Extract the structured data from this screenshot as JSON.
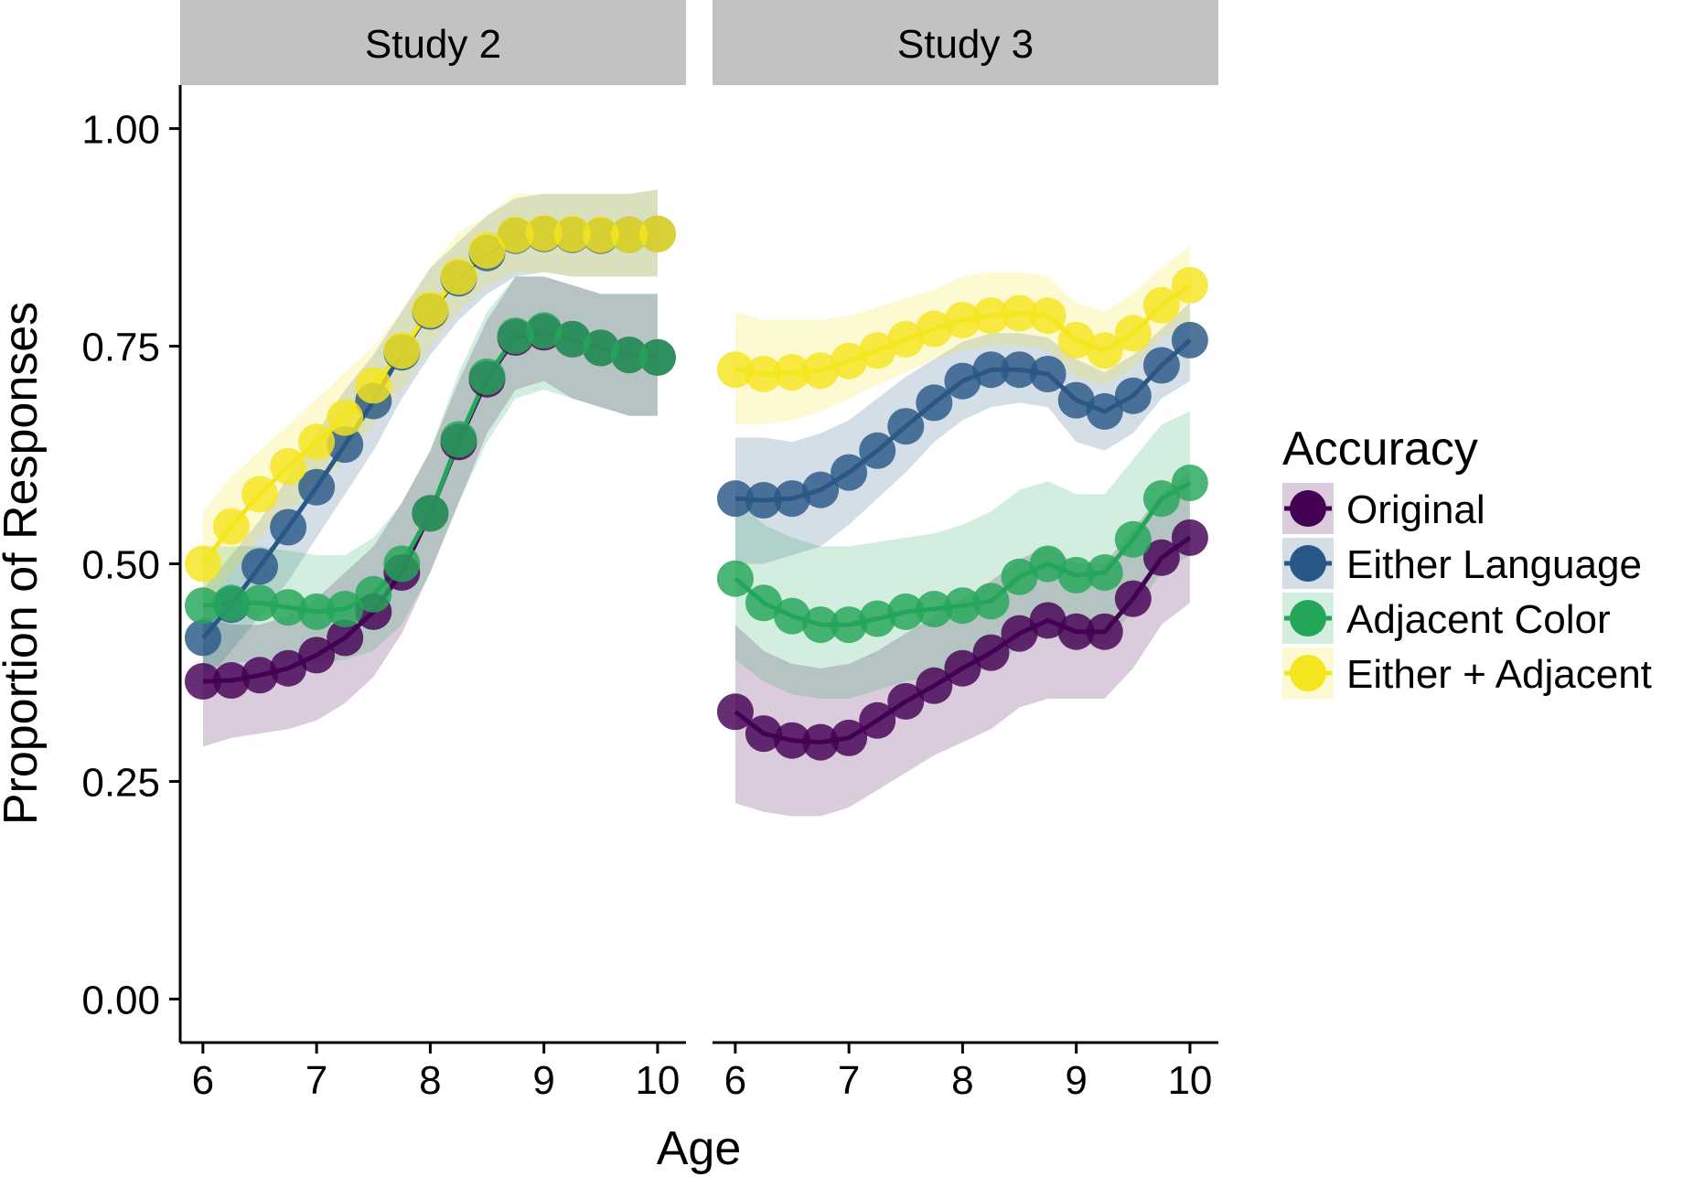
{
  "chart_data": {
    "type": "line",
    "xlabel": "Age",
    "ylabel": "Proportion of Responses",
    "xlim": [
      5.8,
      10.25
    ],
    "ylim": [
      -0.05,
      1.05
    ],
    "x_ticks": [
      "6",
      "7",
      "8",
      "9",
      "10"
    ],
    "y_ticks": [
      "0.00",
      "0.25",
      "0.50",
      "0.75",
      "1.00"
    ],
    "grid": false,
    "legend": {
      "title": "Accuracy",
      "position": "right",
      "entries": [
        "Original",
        "Either Language",
        "Adjacent Color",
        "Either + Adjacent"
      ]
    },
    "colors": {
      "Original": "#440154",
      "Either Language": "#2a5886",
      "Adjacent Color": "#24a65a",
      "Either + Adjacent": "#f5e51f",
      "strip_bg": "#c2c2c2"
    },
    "x": [
      6,
      6.25,
      6.5,
      6.75,
      7,
      7.25,
      7.5,
      7.75,
      8,
      8.25,
      8.5,
      8.75,
      9,
      9.25,
      9.5,
      9.75,
      10
    ],
    "panels": [
      {
        "label": "Study 2",
        "series": [
          {
            "name": "Original",
            "values": [
              0.365,
              0.366,
              0.372,
              0.38,
              0.395,
              0.415,
              0.445,
              0.49,
              0.558,
              0.64,
              0.712,
              0.76,
              0.766,
              0.758,
              0.748,
              0.74,
              0.737
            ],
            "lower": [
              0.29,
              0.3,
              0.305,
              0.31,
              0.32,
              0.34,
              0.37,
              0.42,
              0.49,
              0.57,
              0.65,
              0.7,
              0.71,
              0.69,
              0.68,
              0.67,
              0.67
            ],
            "upper": [
              0.44,
              0.43,
              0.43,
              0.44,
              0.46,
              0.49,
              0.52,
              0.57,
              0.63,
              0.71,
              0.78,
              0.83,
              0.83,
              0.82,
              0.81,
              0.81,
              0.81
            ]
          },
          {
            "name": "Either Language",
            "values": [
              0.415,
              0.453,
              0.497,
              0.542,
              0.588,
              0.637,
              0.687,
              0.743,
              0.79,
              0.828,
              0.857,
              0.877,
              0.879,
              0.878,
              0.877,
              0.878,
              0.879
            ],
            "lower": [
              0.36,
              0.4,
              0.44,
              0.48,
              0.53,
              0.58,
              0.63,
              0.69,
              0.74,
              0.78,
              0.81,
              0.83,
              0.835,
              0.83,
              0.83,
              0.83,
              0.83
            ],
            "upper": [
              0.47,
              0.51,
              0.55,
              0.6,
              0.65,
              0.7,
              0.74,
              0.79,
              0.84,
              0.87,
              0.9,
              0.92,
              0.925,
              0.925,
              0.925,
              0.925,
              0.93
            ]
          },
          {
            "name": "Adjacent Color",
            "values": [
              0.452,
              0.455,
              0.455,
              0.45,
              0.445,
              0.448,
              0.465,
              0.5,
              0.558,
              0.643,
              0.715,
              0.762,
              0.768,
              0.758,
              0.748,
              0.74,
              0.737
            ],
            "lower": [
              0.38,
              0.385,
              0.39,
              0.39,
              0.385,
              0.39,
              0.4,
              0.43,
              0.49,
              0.57,
              0.64,
              0.69,
              0.7,
              0.69,
              0.68,
              0.67,
              0.67
            ],
            "upper": [
              0.52,
              0.52,
              0.52,
              0.515,
              0.51,
              0.51,
              0.53,
              0.57,
              0.63,
              0.72,
              0.79,
              0.83,
              0.83,
              0.82,
              0.81,
              0.81,
              0.81
            ]
          },
          {
            "name": "Either + Adjacent",
            "values": [
              0.5,
              0.543,
              0.58,
              0.612,
              0.64,
              0.668,
              0.705,
              0.745,
              0.792,
              0.83,
              0.86,
              0.878,
              0.88,
              0.879,
              0.878,
              0.878,
              0.879
            ],
            "lower": [
              0.45,
              0.49,
              0.53,
              0.56,
              0.59,
              0.62,
              0.66,
              0.7,
              0.75,
              0.79,
              0.82,
              0.835,
              0.835,
              0.83,
              0.83,
              0.83,
              0.83
            ],
            "upper": [
              0.56,
              0.6,
              0.63,
              0.66,
              0.69,
              0.72,
              0.75,
              0.79,
              0.84,
              0.88,
              0.9,
              0.925,
              0.925,
              0.925,
              0.925,
              0.925,
              0.93
            ]
          }
        ]
      },
      {
        "label": "Study 3",
        "series": [
          {
            "name": "Original",
            "values": [
              0.33,
              0.305,
              0.297,
              0.295,
              0.3,
              0.32,
              0.342,
              0.36,
              0.38,
              0.398,
              0.42,
              0.435,
              0.422,
              0.422,
              0.46,
              0.507,
              0.53
            ],
            "lower": [
              0.225,
              0.215,
              0.21,
              0.21,
              0.22,
              0.24,
              0.26,
              0.28,
              0.295,
              0.31,
              0.335,
              0.345,
              0.345,
              0.345,
              0.38,
              0.43,
              0.455
            ],
            "upper": [
              0.43,
              0.4,
              0.385,
              0.38,
              0.385,
              0.4,
              0.42,
              0.44,
              0.46,
              0.48,
              0.505,
              0.52,
              0.5,
              0.5,
              0.54,
              0.58,
              0.605
            ]
          },
          {
            "name": "Either Language",
            "values": [
              0.575,
              0.573,
              0.575,
              0.585,
              0.605,
              0.63,
              0.658,
              0.685,
              0.71,
              0.723,
              0.723,
              0.718,
              0.688,
              0.675,
              0.693,
              0.728,
              0.757
            ],
            "lower": [
              0.5,
              0.5,
              0.51,
              0.52,
              0.545,
              0.575,
              0.605,
              0.64,
              0.665,
              0.68,
              0.685,
              0.68,
              0.64,
              0.63,
              0.65,
              0.69,
              0.71
            ],
            "upper": [
              0.645,
              0.645,
              0.64,
              0.65,
              0.665,
              0.69,
              0.715,
              0.735,
              0.755,
              0.765,
              0.765,
              0.76,
              0.735,
              0.72,
              0.74,
              0.77,
              0.8
            ]
          },
          {
            "name": "Adjacent Color",
            "values": [
              0.483,
              0.455,
              0.44,
              0.43,
              0.43,
              0.437,
              0.445,
              0.448,
              0.452,
              0.457,
              0.485,
              0.5,
              0.487,
              0.49,
              0.528,
              0.575,
              0.593
            ],
            "lower": [
              0.39,
              0.365,
              0.35,
              0.345,
              0.345,
              0.355,
              0.365,
              0.37,
              0.375,
              0.38,
              0.405,
              0.42,
              0.405,
              0.41,
              0.445,
              0.49,
              0.51
            ],
            "upper": [
              0.575,
              0.545,
              0.53,
              0.52,
              0.52,
              0.525,
              0.53,
              0.535,
              0.545,
              0.56,
              0.585,
              0.595,
              0.58,
              0.58,
              0.62,
              0.66,
              0.675
            ]
          },
          {
            "name": "Either + Adjacent",
            "values": [
              0.723,
              0.718,
              0.72,
              0.722,
              0.733,
              0.745,
              0.758,
              0.77,
              0.78,
              0.785,
              0.788,
              0.785,
              0.757,
              0.745,
              0.765,
              0.797,
              0.82
            ],
            "lower": [
              0.66,
              0.66,
              0.665,
              0.675,
              0.69,
              0.705,
              0.72,
              0.735,
              0.745,
              0.75,
              0.75,
              0.745,
              0.715,
              0.705,
              0.725,
              0.76,
              0.775
            ],
            "upper": [
              0.79,
              0.78,
              0.78,
              0.78,
              0.785,
              0.795,
              0.805,
              0.815,
              0.83,
              0.835,
              0.835,
              0.83,
              0.8,
              0.79,
              0.81,
              0.84,
              0.865
            ]
          }
        ]
      }
    ]
  }
}
